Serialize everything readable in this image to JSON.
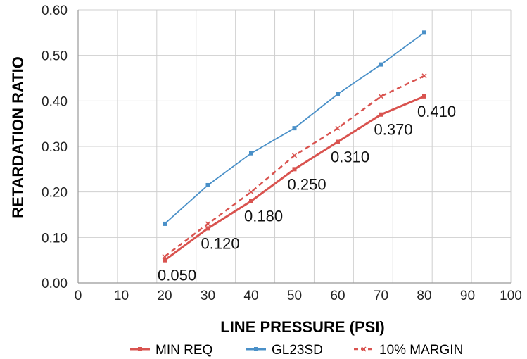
{
  "chart_data": {
    "type": "line",
    "xlabel": "LINE PRESSURE (PSI)",
    "ylabel": "RETARDATION RATIO",
    "xlim": [
      0,
      100
    ],
    "ylim": [
      0,
      0.6
    ],
    "x_ticks": [
      "0",
      "10",
      "20",
      "30",
      "40",
      "50",
      "60",
      "70",
      "80",
      "90",
      "100"
    ],
    "y_ticks": [
      "0.00",
      "0.10",
      "0.20",
      "0.30",
      "0.40",
      "0.50",
      "0.60"
    ],
    "grid": true,
    "legend_position": "bottom",
    "series": [
      {
        "name": "MIN REQ",
        "color": "#d9534f",
        "style": "solid",
        "marker": "square",
        "x": [
          20,
          30,
          40,
          50,
          60,
          70,
          80
        ],
        "values": [
          0.05,
          0.12,
          0.18,
          0.25,
          0.31,
          0.37,
          0.41
        ],
        "labels": [
          "0.050",
          "0.120",
          "0.180",
          "0.250",
          "0.310",
          "0.370",
          "0.410"
        ]
      },
      {
        "name": "GL23SD",
        "color": "#4a90c8",
        "style": "solid",
        "marker": "square",
        "x": [
          20,
          30,
          40,
          50,
          60,
          70,
          80
        ],
        "values": [
          0.13,
          0.215,
          0.285,
          0.34,
          0.415,
          0.48,
          0.55
        ]
      },
      {
        "name": "10% MARGIN",
        "color": "#d9534f",
        "style": "dashed",
        "marker": "x",
        "x": [
          20,
          30,
          40,
          50,
          60,
          70,
          80
        ],
        "values": [
          0.058,
          0.13,
          0.2,
          0.28,
          0.34,
          0.41,
          0.455
        ]
      }
    ]
  }
}
